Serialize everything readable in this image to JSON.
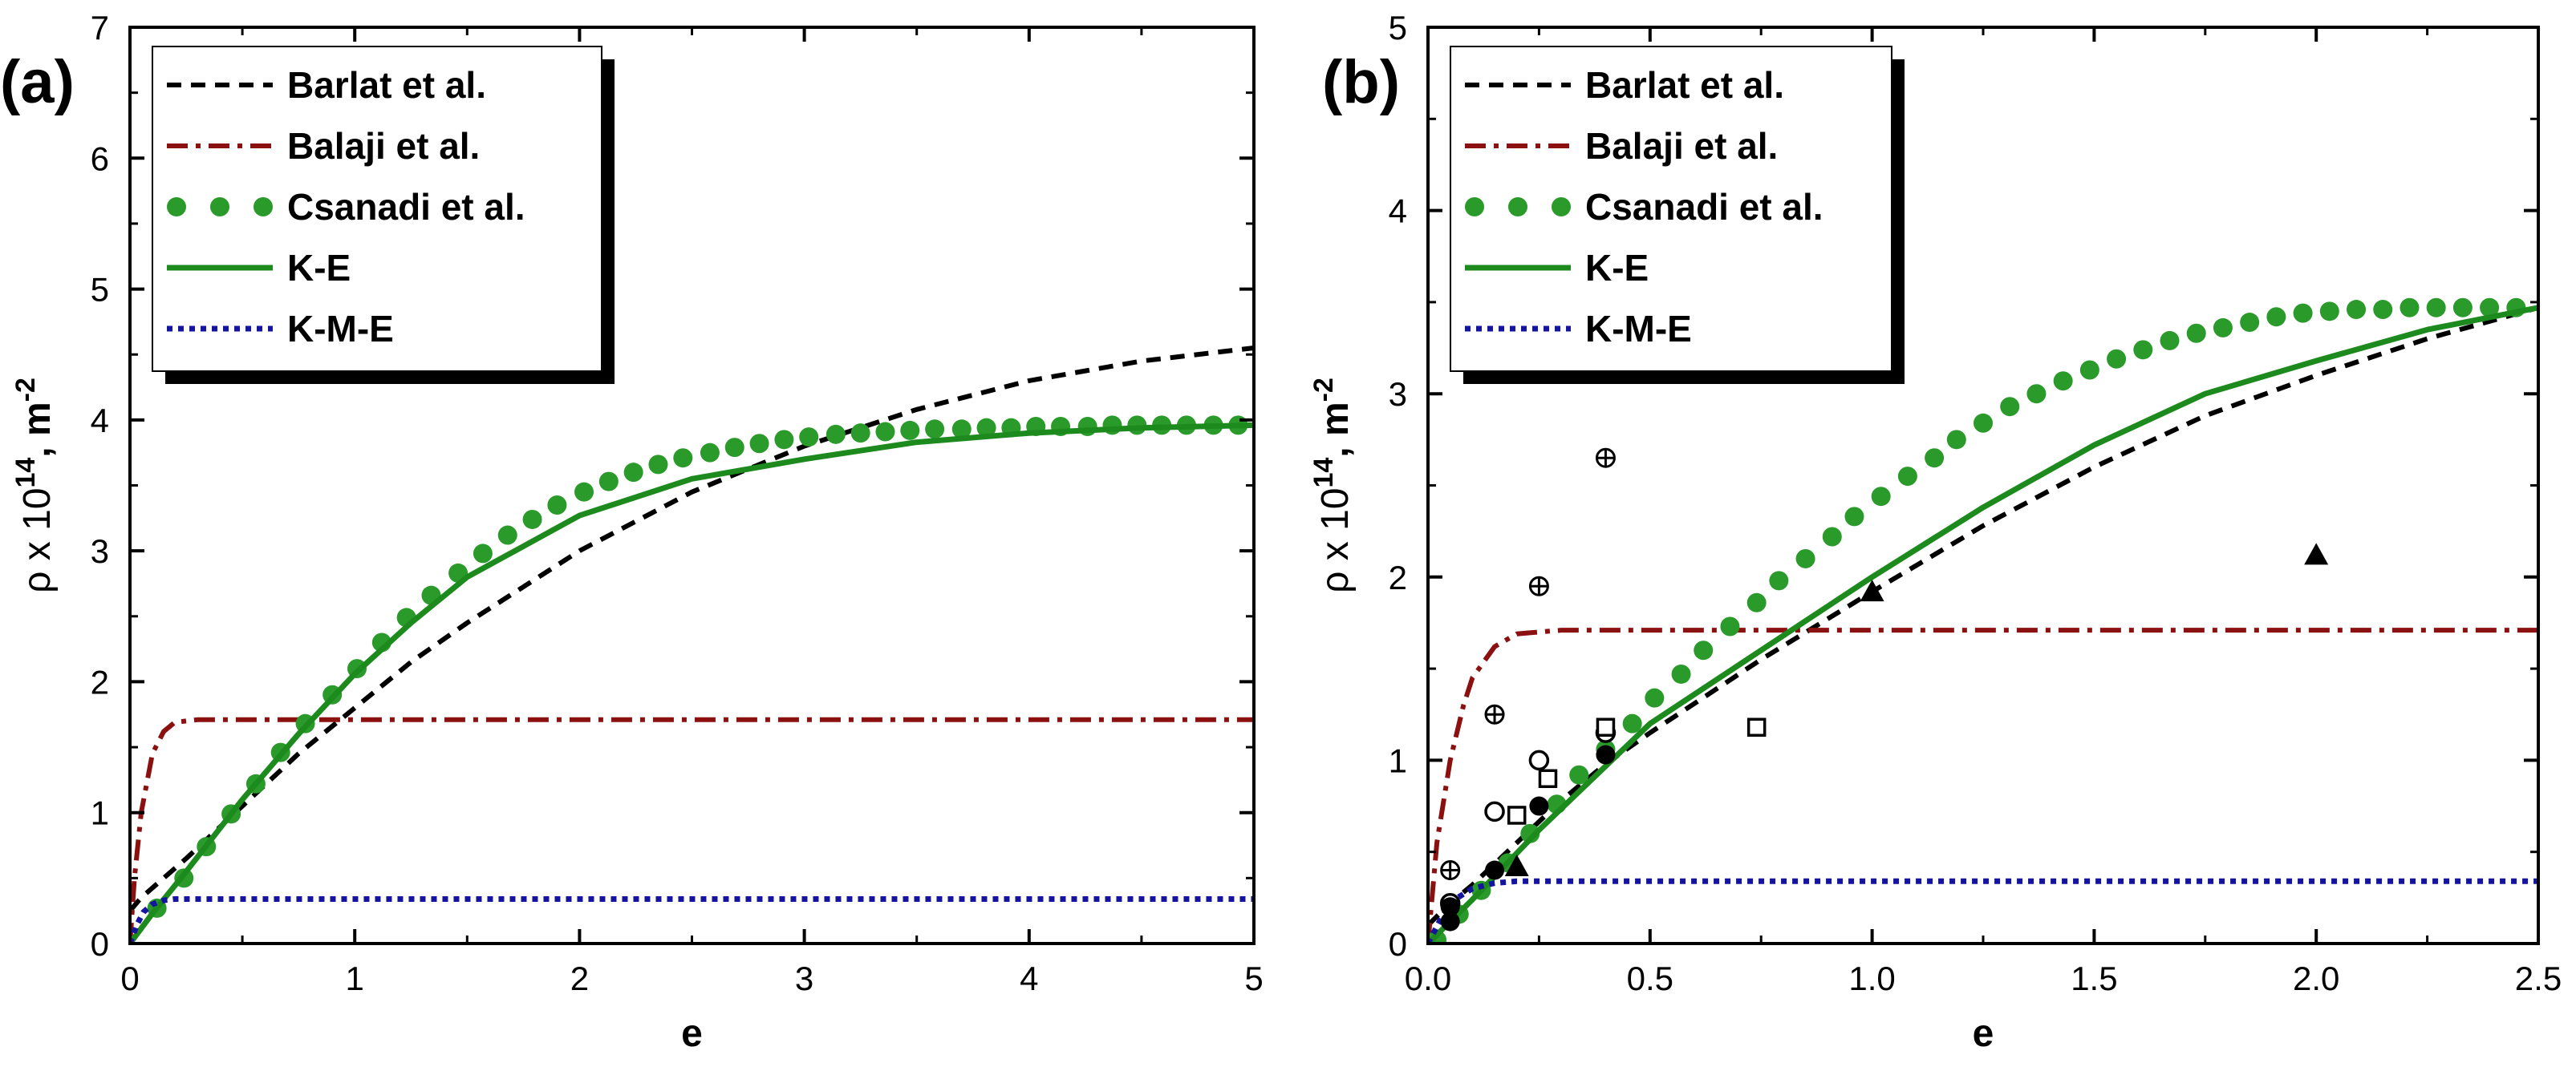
{
  "colors": {
    "barlat": "#000000",
    "balaji": "#8b1010",
    "csanadi": "#2a9a2a",
    "ke": "#1d8a1d",
    "kme": "#1414a0"
  },
  "chart_data": [
    {
      "type": "line",
      "panel_label": "(a)",
      "xlabel": "e",
      "ylabel": "ρ x 10",
      "ylabel_exp": "14",
      "ylabel_unit": ", m",
      "ylabel_unit_exp": "-2",
      "xlim": [
        0,
        5
      ],
      "ylim": [
        0,
        7
      ],
      "xticks": [
        0,
        1,
        2,
        3,
        4,
        5
      ],
      "xtick_labels": [
        "0",
        "1",
        "2",
        "3",
        "4",
        "5"
      ],
      "yticks": [
        0,
        1,
        2,
        3,
        4,
        5,
        6,
        7
      ],
      "ytick_labels": [
        "0",
        "1",
        "2",
        "3",
        "4",
        "5",
        "6",
        "7"
      ],
      "legend_position": "top-left",
      "series": [
        {
          "name": "Barlat et al.",
          "style": "dashed",
          "x": [
            0,
            0.05,
            0.25,
            0.5,
            0.75,
            1,
            1.25,
            1.5,
            2,
            2.5,
            3,
            3.5,
            4,
            4.5,
            5
          ],
          "y": [
            0.25,
            0.35,
            0.65,
            1.05,
            1.45,
            1.8,
            2.15,
            2.45,
            3.0,
            3.45,
            3.8,
            4.08,
            4.3,
            4.45,
            4.55
          ]
        },
        {
          "name": "Balaji et al.",
          "style": "dash-dot",
          "x": [
            0,
            0.02,
            0.05,
            0.1,
            0.15,
            0.2,
            0.3,
            0.5,
            1,
            2,
            3,
            4,
            5
          ],
          "y": [
            0.0,
            0.5,
            1.0,
            1.45,
            1.62,
            1.69,
            1.71,
            1.71,
            1.71,
            1.71,
            1.71,
            1.71,
            1.71
          ]
        },
        {
          "name": "Csanadi et al.",
          "style": "dots",
          "x": [
            0.12,
            0.24,
            0.34,
            0.45,
            0.56,
            0.67,
            0.78,
            0.9,
            1.01,
            1.12,
            1.23,
            1.34,
            1.46,
            1.57,
            1.68,
            1.79,
            1.9,
            2.02,
            2.13,
            2.24,
            2.35,
            2.46,
            2.58,
            2.69,
            2.8,
            2.91,
            3.02,
            3.14,
            3.25,
            3.36,
            3.47,
            3.58,
            3.7,
            3.81,
            3.92,
            4.03,
            4.14,
            4.26,
            4.37,
            4.48,
            4.59,
            4.7,
            4.82,
            4.93
          ],
          "y": [
            0.27,
            0.5,
            0.74,
            0.99,
            1.22,
            1.46,
            1.68,
            1.9,
            2.1,
            2.3,
            2.49,
            2.66,
            2.83,
            2.98,
            3.12,
            3.24,
            3.35,
            3.45,
            3.53,
            3.6,
            3.66,
            3.71,
            3.75,
            3.79,
            3.82,
            3.85,
            3.87,
            3.89,
            3.9,
            3.91,
            3.92,
            3.93,
            3.93,
            3.94,
            3.94,
            3.95,
            3.95,
            3.95,
            3.96,
            3.96,
            3.96,
            3.96,
            3.96,
            3.96
          ]
        },
        {
          "name": "K-E",
          "style": "solid",
          "x": [
            0,
            0.1,
            0.25,
            0.5,
            0.75,
            1,
            1.25,
            1.5,
            2,
            2.5,
            3,
            3.5,
            4,
            4.5,
            5
          ],
          "y": [
            0,
            0.23,
            0.55,
            1.1,
            1.6,
            2.06,
            2.45,
            2.8,
            3.27,
            3.55,
            3.7,
            3.83,
            3.9,
            3.94,
            3.96
          ]
        },
        {
          "name": "K-M-E",
          "style": "dotted",
          "x": [
            0,
            0.03,
            0.06,
            0.1,
            0.15,
            0.2,
            0.3,
            1,
            2,
            3,
            4,
            5
          ],
          "y": [
            0,
            0.14,
            0.24,
            0.3,
            0.33,
            0.34,
            0.34,
            0.34,
            0.34,
            0.34,
            0.34,
            0.34
          ]
        }
      ]
    },
    {
      "type": "line",
      "panel_label": "(b)",
      "xlabel": "e",
      "ylabel": "ρ x 10",
      "ylabel_exp": "14",
      "ylabel_unit": ", m",
      "ylabel_unit_exp": "-2",
      "xlim": [
        0,
        2.5
      ],
      "ylim": [
        0,
        5
      ],
      "xticks": [
        0,
        0.5,
        1.0,
        1.5,
        2.0,
        2.5
      ],
      "xtick_labels": [
        "0.0",
        "0.5",
        "1.0",
        "1.5",
        "2.0",
        "2.5"
      ],
      "yticks": [
        0,
        1,
        2,
        3,
        4,
        5
      ],
      "ytick_labels": [
        "0",
        "1",
        "2",
        "3",
        "4",
        "5"
      ],
      "legend_position": "top-left",
      "series": [
        {
          "name": "Barlat et al.",
          "style": "dashed",
          "x": [
            0,
            0.05,
            0.1,
            0.2,
            0.3,
            0.4,
            0.5,
            0.75,
            1,
            1.25,
            1.5,
            1.75,
            2,
            2.25,
            2.5
          ],
          "y": [
            0.1,
            0.22,
            0.32,
            0.55,
            0.78,
            0.98,
            1.15,
            1.55,
            1.92,
            2.28,
            2.6,
            2.88,
            3.1,
            3.3,
            3.47
          ]
        },
        {
          "name": "Balaji et al.",
          "style": "dash-dot",
          "x": [
            0,
            0.02,
            0.05,
            0.08,
            0.1,
            0.15,
            0.2,
            0.3,
            0.5,
            1,
            1.5,
            2,
            2.5
          ],
          "y": [
            0,
            0.55,
            1.0,
            1.3,
            1.45,
            1.62,
            1.69,
            1.71,
            1.71,
            1.71,
            1.71,
            1.71,
            1.71
          ]
        },
        {
          "name": "Csanadi et al.",
          "style": "dots",
          "x": [
            0.02,
            0.07,
            0.12,
            0.18,
            0.23,
            0.29,
            0.34,
            0.4,
            0.46,
            0.51,
            0.57,
            0.62,
            0.68,
            0.74,
            0.79,
            0.85,
            0.91,
            0.96,
            1.02,
            1.08,
            1.14,
            1.19,
            1.25,
            1.31,
            1.37,
            1.43,
            1.49,
            1.55,
            1.61,
            1.67,
            1.73,
            1.79,
            1.85,
            1.91,
            1.97,
            2.03,
            2.09,
            2.15,
            2.21,
            2.27,
            2.33,
            2.39,
            2.45
          ],
          "y": [
            0.02,
            0.16,
            0.29,
            0.44,
            0.6,
            0.76,
            0.92,
            1.06,
            1.2,
            1.34,
            1.47,
            1.6,
            1.73,
            1.86,
            1.98,
            2.1,
            2.22,
            2.33,
            2.44,
            2.55,
            2.65,
            2.75,
            2.84,
            2.93,
            3.0,
            3.07,
            3.13,
            3.19,
            3.24,
            3.29,
            3.33,
            3.36,
            3.39,
            3.42,
            3.44,
            3.45,
            3.46,
            3.46,
            3.47,
            3.47,
            3.47,
            3.47,
            3.47
          ]
        },
        {
          "name": "K-E",
          "style": "solid",
          "x": [
            0,
            0.1,
            0.25,
            0.5,
            0.75,
            1,
            1.25,
            1.5,
            1.75,
            2,
            2.25,
            2.5
          ],
          "y": [
            0,
            0.24,
            0.62,
            1.2,
            1.6,
            2.0,
            2.38,
            2.72,
            3.0,
            3.18,
            3.35,
            3.47
          ]
        },
        {
          "name": "K-M-E",
          "style": "dotted",
          "x": [
            0,
            0.03,
            0.06,
            0.1,
            0.15,
            0.2,
            0.3,
            1,
            1.5,
            2,
            2.5
          ],
          "y": [
            0,
            0.14,
            0.24,
            0.3,
            0.33,
            0.34,
            0.34,
            0.34,
            0.34,
            0.34,
            0.34
          ]
        }
      ],
      "scatter_markers": [
        {
          "shape": "circle-plus",
          "points": [
            [
              0.05,
              0.4
            ],
            [
              0.15,
              1.25
            ],
            [
              0.25,
              1.95
            ],
            [
              0.4,
              2.65
            ]
          ]
        },
        {
          "shape": "circle-open",
          "points": [
            [
              0.05,
              0.22
            ],
            [
              0.15,
              0.72
            ],
            [
              0.25,
              1.0
            ],
            [
              0.4,
              1.15
            ]
          ]
        },
        {
          "shape": "circle-filled",
          "points": [
            [
              0.05,
              0.12
            ],
            [
              0.05,
              0.2
            ],
            [
              0.15,
              0.4
            ],
            [
              0.25,
              0.75
            ],
            [
              0.4,
              1.03
            ]
          ]
        },
        {
          "shape": "square-open",
          "points": [
            [
              0.2,
              0.7
            ],
            [
              0.27,
              0.9
            ],
            [
              0.4,
              1.18
            ],
            [
              0.74,
              1.18
            ]
          ]
        },
        {
          "shape": "triangle-filled",
          "points": [
            [
              0.2,
              0.42
            ],
            [
              1.0,
              1.92
            ],
            [
              2.0,
              2.12
            ]
          ]
        }
      ]
    }
  ]
}
